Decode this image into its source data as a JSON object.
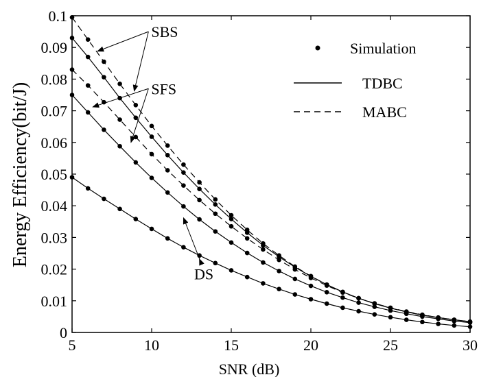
{
  "chart_data": {
    "type": "line",
    "xlabel": "SNR (dB)",
    "ylabel": "Energy Efficiency(bit/J)",
    "xlim": [
      5,
      30
    ],
    "ylim": [
      0,
      0.1
    ],
    "xticks": [
      5,
      10,
      15,
      20,
      25,
      30
    ],
    "yticks": [
      0,
      0.01,
      0.02,
      0.03,
      0.04,
      0.05,
      0.06,
      0.07,
      0.08,
      0.09,
      0.1
    ],
    "grid": false,
    "legend_position": "top-right",
    "legend": [
      {
        "label": "Simulation",
        "style": "marker"
      },
      {
        "label": "TDBC",
        "style": "solid"
      },
      {
        "label": "MABC",
        "style": "dashed"
      }
    ],
    "x": [
      5,
      6,
      7,
      8,
      9,
      10,
      11,
      12,
      13,
      14,
      15,
      16,
      17,
      18,
      19,
      20,
      21,
      22,
      23,
      24,
      25,
      26,
      27,
      28,
      29,
      30
    ],
    "series": [
      {
        "style": "dashed",
        "values": [
          0.0995,
          0.0925,
          0.0855,
          0.0785,
          0.0718,
          0.0652,
          0.059,
          0.053,
          0.0474,
          0.042,
          0.037,
          0.0324,
          0.0281,
          0.0243,
          0.0208,
          0.0178,
          0.0151,
          0.0128,
          0.0108,
          0.0091,
          0.0077,
          0.0065,
          0.0055,
          0.0047,
          0.004,
          0.0034
        ]
      },
      {
        "style": "solid",
        "values": [
          0.093,
          0.087,
          0.0806,
          0.074,
          0.0678,
          0.0618,
          0.056,
          0.0505,
          0.0453,
          0.0404,
          0.0358,
          0.0315,
          0.0275,
          0.0239,
          0.0206,
          0.0177,
          0.0151,
          0.0128,
          0.0108,
          0.0091,
          0.0077,
          0.0065,
          0.0055,
          0.0047,
          0.004,
          0.0034
        ]
      },
      {
        "style": "dashed",
        "values": [
          0.083,
          0.078,
          0.0727,
          0.0672,
          0.0617,
          0.0563,
          0.0512,
          0.0464,
          0.0418,
          0.0375,
          0.0335,
          0.0297,
          0.0262,
          0.0229,
          0.0199,
          0.0172,
          0.0148,
          0.0126,
          0.0108,
          0.0092,
          0.0078,
          0.0066,
          0.0056,
          0.0047,
          0.004,
          0.0034
        ]
      },
      {
        "style": "solid",
        "values": [
          0.075,
          0.0695,
          0.064,
          0.0588,
          0.0537,
          0.0488,
          0.0442,
          0.0398,
          0.0357,
          0.0319,
          0.0284,
          0.0251,
          0.0221,
          0.0194,
          0.0169,
          0.0147,
          0.0127,
          0.011,
          0.0094,
          0.0081,
          0.0069,
          0.0059,
          0.005,
          0.0043,
          0.0036,
          0.0031
        ]
      },
      {
        "style": "solid",
        "values": [
          0.049,
          0.0455,
          0.0422,
          0.039,
          0.0358,
          0.0327,
          0.0297,
          0.0269,
          0.0243,
          0.0219,
          0.0196,
          0.0175,
          0.0155,
          0.0137,
          0.012,
          0.0105,
          0.0091,
          0.0078,
          0.0067,
          0.0057,
          0.0048,
          0.004,
          0.0033,
          0.0027,
          0.0022,
          0.0018
        ]
      }
    ],
    "annotations": [
      {
        "text": "SBS",
        "anchor": [
          9.8,
          0.095
        ],
        "targets": [
          [
            6.6,
            0.0888
          ],
          [
            8.9,
            0.0762
          ]
        ]
      },
      {
        "text": "SFS",
        "anchor": [
          9.8,
          0.077
        ],
        "targets": [
          [
            6.3,
            0.0712
          ],
          [
            8.7,
            0.06
          ]
        ]
      },
      {
        "text": "DS",
        "anchor": [
          12.5,
          0.0185
        ],
        "targets": [
          [
            12.0,
            0.0362
          ],
          [
            13.0,
            0.0232
          ]
        ]
      }
    ]
  }
}
